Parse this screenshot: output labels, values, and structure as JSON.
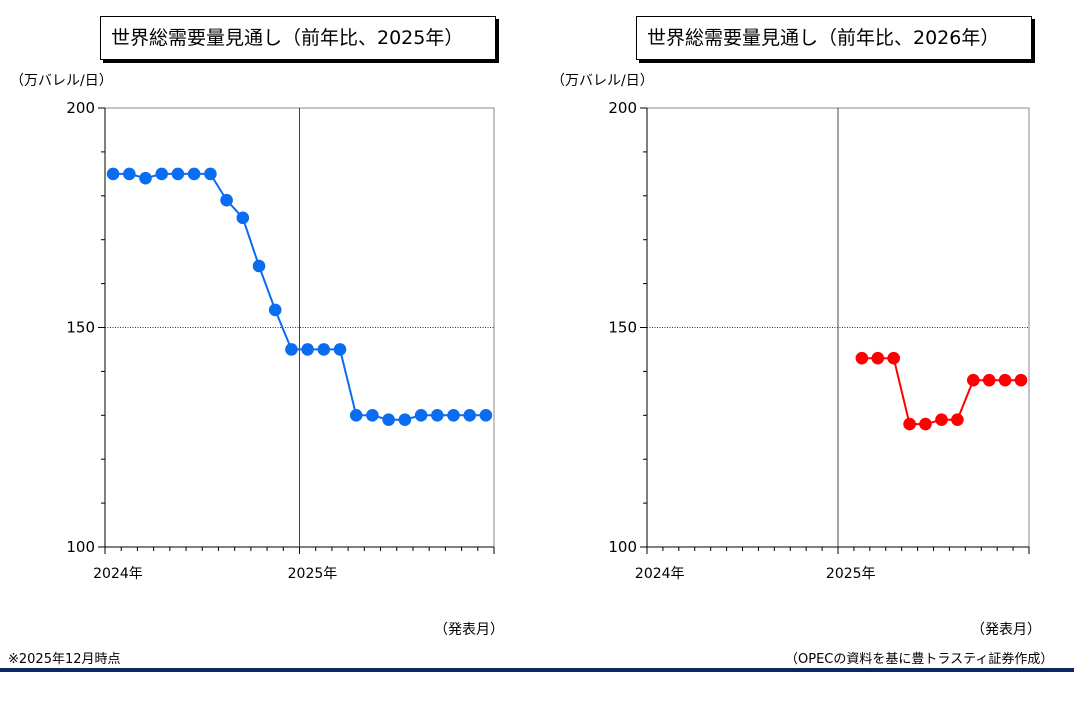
{
  "footnote_left": "※2025年12月時点",
  "footnote_right": "（OPECの資料を基に豊トラスティ証券作成）",
  "colors": {
    "left_series": "#0a6cf0",
    "right_series": "#ff0000",
    "footer_rule": "#0b2a5b"
  },
  "chart_data": [
    {
      "type": "line",
      "title": "世界総需要量見通し（前年比、2025年）",
      "ylabel": "（万バレル/日）",
      "xlabel": "（発表月）",
      "ylim": [
        100,
        200
      ],
      "yticks": [
        100,
        150,
        200
      ],
      "xtick_labels": [
        "2024年",
        "2025年"
      ],
      "months_total": 24,
      "grid": {
        "vertical_at_month": 12,
        "horizontal_at_value": 150
      },
      "series": [
        {
          "color": "#0a6cf0",
          "x": [
            "2024-01",
            "2024-02",
            "2024-03",
            "2024-04",
            "2024-05",
            "2024-06",
            "2024-07",
            "2024-08",
            "2024-09",
            "2024-10",
            "2024-11",
            "2024-12",
            "2025-01",
            "2025-02",
            "2025-03",
            "2025-04",
            "2025-05",
            "2025-06",
            "2025-07",
            "2025-08",
            "2025-09",
            "2025-10",
            "2025-11",
            "2025-12"
          ],
          "values": [
            185,
            185,
            184,
            185,
            185,
            185,
            185,
            179,
            175,
            164,
            154,
            145,
            145,
            145,
            145,
            130,
            130,
            129,
            129,
            130,
            130,
            130,
            130,
            130
          ]
        }
      ]
    },
    {
      "type": "line",
      "title": "世界総需要量見通し（前年比、2026年）",
      "ylabel": "（万バレル/日）",
      "xlabel": "（発表月）",
      "ylim": [
        100,
        200
      ],
      "yticks": [
        100,
        150,
        200
      ],
      "xtick_labels": [
        "2024年",
        "2025年"
      ],
      "months_total": 24,
      "grid": {
        "vertical_at_month": 12,
        "horizontal_at_value": 150
      },
      "series": [
        {
          "color": "#ff0000",
          "x": [
            "2025-02",
            "2025-03",
            "2025-04",
            "2025-05",
            "2025-06",
            "2025-07",
            "2025-08",
            "2025-09",
            "2025-10",
            "2025-11",
            "2025-12"
          ],
          "values": [
            143,
            143,
            143,
            128,
            128,
            129,
            129,
            138,
            138,
            138,
            138
          ]
        }
      ]
    }
  ]
}
